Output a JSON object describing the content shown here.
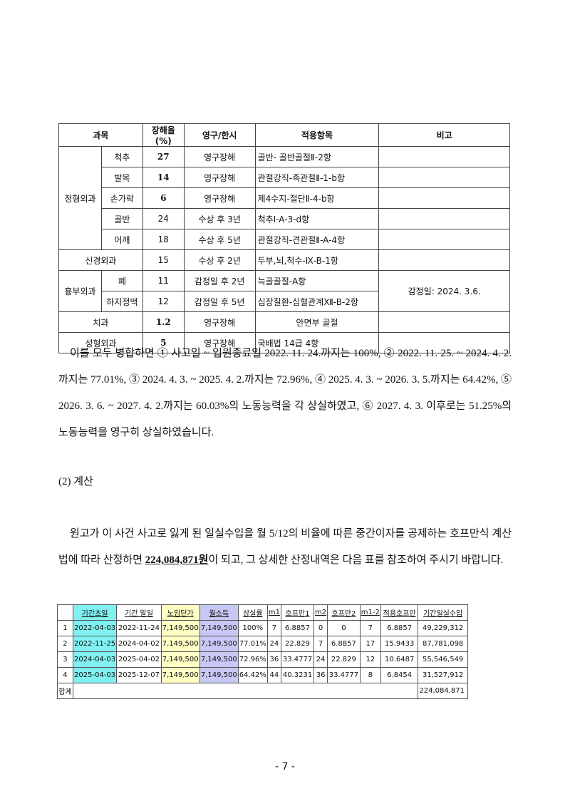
{
  "table1": {
    "headers": [
      "과목",
      "장해율(%)",
      "영구/한시",
      "적용항목",
      "비고"
    ],
    "rows": [
      {
        "dept": "정형외과",
        "part": "척추",
        "rate": "27",
        "period": "영구장해",
        "item": "골반- 골반골절Ⅱ-2항"
      },
      {
        "part": "발목",
        "rate": "14",
        "period": "영구장해",
        "item": "관절강직-족관절Ⅱ-1-b항"
      },
      {
        "part": "손가락",
        "rate": "6",
        "period": "영구장해",
        "item": "제4수지-절단Ⅱ-4-b항"
      },
      {
        "part": "골반",
        "rate": "24",
        "period": "수상 후 3년",
        "item": "척추Ⅰ-A-3-d항"
      },
      {
        "part": "어깨",
        "rate": "18",
        "period": "수상 후 5년",
        "item": "관절강직-견관절Ⅱ-A-4항"
      },
      {
        "dept": "신경외과",
        "rate": "15",
        "period": "수상 후 2년",
        "item": "두부,뇌,척수-Ⅸ-B-1항"
      },
      {
        "dept": "흉부외과",
        "part": "폐",
        "rate": "11",
        "period": "감정일 후 2년",
        "item": "늑골골절-A항",
        "note": "감정일: 2024. 3.6."
      },
      {
        "part": "하지정맥",
        "rate": "12",
        "period": "감정일 후 5년",
        "item": "심장질환-심혈관계Ⅻ-B-2항"
      },
      {
        "dept": "치과",
        "rate": "1.2",
        "period": "영구장해",
        "item": "안면부 골절"
      },
      {
        "dept": "성형외과",
        "rate": "5",
        "period": "영구장해",
        "item": "국배법 14급 4항"
      }
    ]
  },
  "para1": "이를 모두 병합하면 ① 사고일 ~ 입원종료일 2022. 11. 24.까지는 100%, ② 2022. 11. 25. ~ 2024. 4. 2.까지는 77.01%, ③ 2024. 4. 3. ~ 2025. 4. 2.까지는 72.96%, ④ 2025. 4. 3. ~ 2026. 3. 5.까지는 64.42%, ⑤ 2026. 3. 6. ~ 2027. 4. 2.까지는 60.03%의 노동능력을 각 상실하였고, ⑥ 2027. 4. 3. 이후로는 51.25%의 노동능력을 영구히 상실하였습니다.",
  "heading2": "(2) 계산",
  "para2": {
    "before": "원고가 이 사건 사고로 잃게 된 일실수입을 월 5/12의 비율에 따른 중간이자를 공제하는 호프만식 계산법에 따라 산정하면 ",
    "amount": "224,084,871원",
    "after": "이 되고, 그 상세한 산정내역은 다음 표를 참조하여 주시기 바랍니다."
  },
  "table2": {
    "headers": [
      "",
      "기간초일",
      "기간 말일",
      "노임단가",
      "월소득",
      "상실률",
      "m1",
      "호프만1",
      "m2",
      "호프만2",
      "m1-2",
      "적용호프만",
      "기간일실수입"
    ],
    "rows": [
      [
        "1",
        "2022-04-03",
        "2022-11-24",
        "7,149,500",
        "7,149,500",
        "100%",
        "7",
        "6.8857",
        "0",
        "0",
        "7",
        "6.8857",
        "49,229,312"
      ],
      [
        "2",
        "2022-11-25",
        "2024-04-02",
        "7,149,500",
        "7,149,500",
        "77.01%",
        "24",
        "22.829",
        "7",
        "6.8857",
        "17",
        "15.9433",
        "87,781,098"
      ],
      [
        "3",
        "2024-04-03",
        "2025-04-02",
        "7,149,500",
        "7,149,500",
        "72.96%",
        "36",
        "33.4777",
        "24",
        "22.829",
        "12",
        "10.6487",
        "55,546,549"
      ],
      [
        "4",
        "2025-04-03",
        "2025-12-07",
        "7,149,500",
        "7,149,500",
        "64.42%",
        "44",
        "40.3231",
        "36",
        "33.4777",
        "8",
        "6.8454",
        "31,527,912"
      ]
    ],
    "total_label": "합계",
    "total": "224,084,871",
    "colors": {
      "start_date": "#80f0f0",
      "wage": "#ffffc4",
      "monthly": "#c8c8f6"
    }
  },
  "page_number": "- 7 -"
}
